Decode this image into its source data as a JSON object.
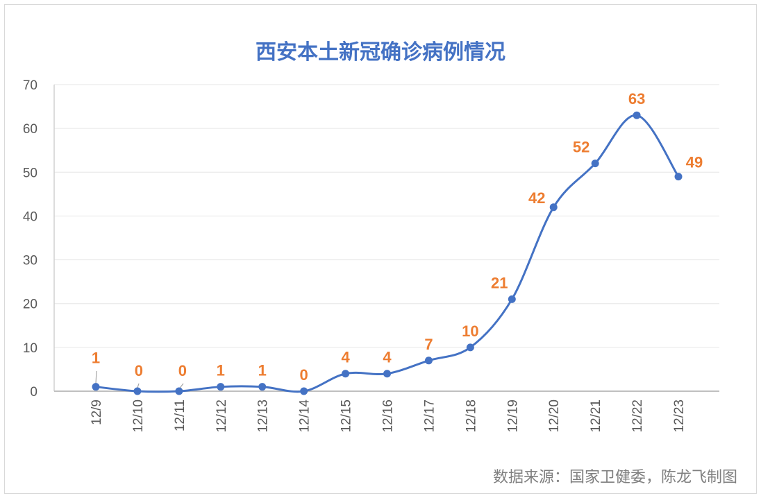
{
  "chart_data": {
    "type": "line",
    "title": "西安本土新冠确诊病例情况",
    "categories": [
      "12/9",
      "12/10",
      "12/11",
      "12/12",
      "12/13",
      "12/14",
      "12/15",
      "12/16",
      "12/17",
      "12/18",
      "12/19",
      "12/20",
      "12/21",
      "12/22",
      "12/23"
    ],
    "values": [
      1,
      0,
      0,
      1,
      1,
      0,
      4,
      4,
      7,
      10,
      21,
      42,
      52,
      63,
      49
    ],
    "ylim": [
      0,
      70
    ],
    "yticks": [
      0,
      10,
      20,
      30,
      40,
      50,
      60,
      70
    ],
    "xlabel": "",
    "ylabel": "",
    "grid": true,
    "smooth": true,
    "data_labels": true,
    "legend": "none",
    "line_color": "#4472c4",
    "label_color": "#ed7d31"
  },
  "source_note": "数据来源：国家卫健委，陈龙飞制图"
}
